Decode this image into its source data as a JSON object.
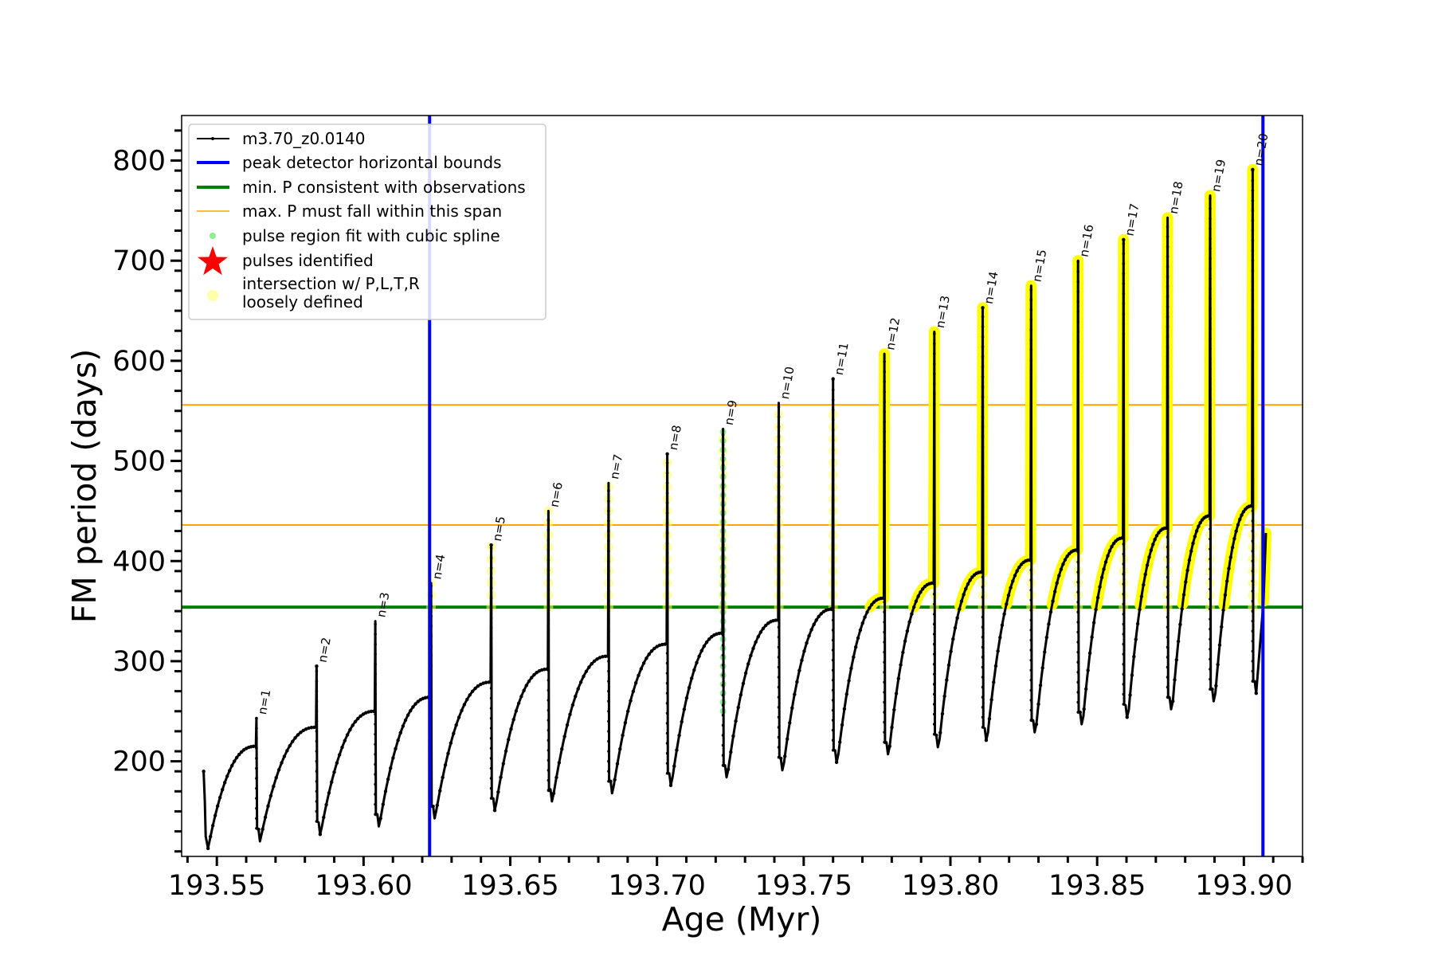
{
  "chart_data": {
    "type": "line",
    "xlabel": "Age (Myr)",
    "ylabel": "FM period (days)",
    "xlim": [
      193.538,
      193.92
    ],
    "ylim": [
      105,
      845
    ],
    "xticks": [
      193.55,
      193.6,
      193.65,
      193.7,
      193.75,
      193.8,
      193.85,
      193.9
    ],
    "xtick_labels": [
      "193.55",
      "193.60",
      "193.65",
      "193.70",
      "193.75",
      "193.80",
      "193.85",
      "193.90"
    ],
    "yticks": [
      200,
      300,
      400,
      500,
      600,
      700,
      800
    ],
    "ytick_labels": [
      "200",
      "300",
      "400",
      "500",
      "600",
      "700",
      "800"
    ],
    "grid": false,
    "legend_position": "top-left",
    "legend": [
      {
        "label": "m3.70_z0.0140",
        "style": "line-dot",
        "color": "#000000"
      },
      {
        "label": "peak detector horizontal bounds",
        "style": "line",
        "color": "#0000ff"
      },
      {
        "label": "min. P consistent with observations",
        "style": "line",
        "color": "#008000"
      },
      {
        "label": "max. P must fall within this span",
        "style": "line-thin",
        "color": "#ffa500"
      },
      {
        "label": "pulse region fit with cubic spline",
        "style": "dot",
        "color": "#90ee90"
      },
      {
        "label": "pulses identified",
        "style": "star",
        "color": "#ff0000"
      },
      {
        "label": "intersection w/ P,L,T,R",
        "label2": "loosely defined",
        "style": "big-dot",
        "color": "#ffffaa"
      }
    ],
    "vertical_lines": [
      {
        "x": 193.6225,
        "color": "#0000ff",
        "role": "peak detector horizontal bounds"
      },
      {
        "x": 193.9065,
        "color": "#0000ff",
        "role": "peak detector horizontal bounds"
      }
    ],
    "horizontal_lines": [
      {
        "y": 354,
        "color": "#008000",
        "role": "min. P consistent with observations"
      },
      {
        "y": 436,
        "color": "#ffa500",
        "role": "max. P must fall within this span"
      },
      {
        "y": 556,
        "color": "#ffa500",
        "role": "max. P must fall within this span"
      }
    ],
    "pulses": [
      {
        "n": "n=1",
        "x": 193.5635,
        "start": 113,
        "trough": 120,
        "end": 215,
        "peak": 243,
        "yellow": false
      },
      {
        "n": "n=2",
        "x": 193.584,
        "start": 120,
        "trough": 127,
        "end": 234,
        "peak": 295,
        "yellow": false
      },
      {
        "n": "n=3",
        "x": 193.604,
        "start": 127,
        "trough": 135,
        "end": 250,
        "peak": 340,
        "yellow": false
      },
      {
        "n": "n=4",
        "x": 193.623,
        "start": 135,
        "trough": 143,
        "end": 264,
        "peak": 378,
        "yellow": true
      },
      {
        "n": "n=5",
        "x": 193.6435,
        "start": 143,
        "trough": 151,
        "end": 279,
        "peak": 416,
        "yellow": true
      },
      {
        "n": "n=6",
        "x": 193.663,
        "start": 151,
        "trough": 160,
        "end": 292,
        "peak": 450,
        "yellow": true
      },
      {
        "n": "n=7",
        "x": 193.6835,
        "start": 160,
        "trough": 168,
        "end": 305,
        "peak": 478,
        "yellow": true
      },
      {
        "n": "n=8",
        "x": 193.7035,
        "start": 168,
        "trough": 176,
        "end": 317,
        "peak": 507,
        "yellow": true
      },
      {
        "n": "n=9",
        "x": 193.7225,
        "start": 176,
        "trough": 184,
        "end": 328,
        "peak": 532,
        "yellow": true
      },
      {
        "n": "n=10",
        "x": 193.7415,
        "start": 184,
        "trough": 191,
        "end": 341,
        "peak": 558,
        "yellow": true
      },
      {
        "n": "n=11",
        "x": 193.76,
        "start": 191,
        "trough": 199,
        "end": 352,
        "peak": 582,
        "yellow": true
      },
      {
        "n": "n=12",
        "x": 193.7775,
        "start": 199,
        "trough": 207,
        "end": 363,
        "peak": 607,
        "yellow": true
      },
      {
        "n": "n=13",
        "x": 193.7945,
        "start": 207,
        "trough": 214,
        "end": 378,
        "peak": 629,
        "yellow": true
      },
      {
        "n": "n=14",
        "x": 193.811,
        "start": 214,
        "trough": 221,
        "end": 389,
        "peak": 653,
        "yellow": true
      },
      {
        "n": "n=15",
        "x": 193.8275,
        "start": 221,
        "trough": 229,
        "end": 401,
        "peak": 675,
        "yellow": true
      },
      {
        "n": "n=16",
        "x": 193.8435,
        "start": 229,
        "trough": 237,
        "end": 411,
        "peak": 700,
        "yellow": true
      },
      {
        "n": "n=17",
        "x": 193.859,
        "start": 237,
        "trough": 244,
        "end": 423,
        "peak": 721,
        "yellow": true
      },
      {
        "n": "n=18",
        "x": 193.874,
        "start": 244,
        "trough": 252,
        "end": 433,
        "peak": 743,
        "yellow": true
      },
      {
        "n": "n=19",
        "x": 193.8885,
        "start": 252,
        "trough": 260,
        "end": 445,
        "peak": 765,
        "yellow": true
      },
      {
        "n": "n=20",
        "x": 193.903,
        "start": 260,
        "trough": 268,
        "end": 455,
        "peak": 791,
        "yellow": true
      }
    ],
    "series": [
      {
        "name": "m3.70_z0.0140",
        "x_start": 193.5455,
        "y_start": 190,
        "x_end": 193.9075,
        "y_end": 428
      }
    ]
  }
}
